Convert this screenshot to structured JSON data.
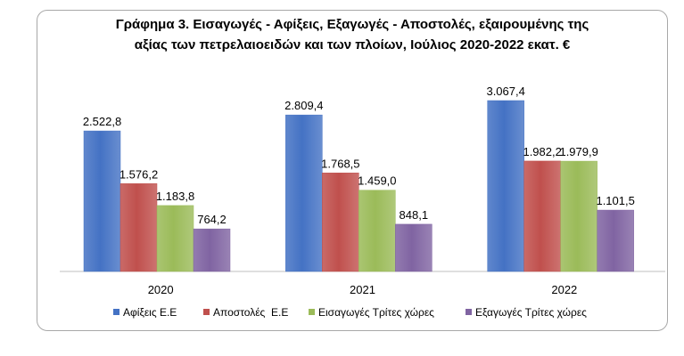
{
  "chart_data": {
    "type": "bar",
    "title_line1": "Γράφημα 3. Εισαγωγές - Αφίξεις, Εξαγωγές - Αποστολές, εξαιρουμένης της",
    "title_line2": "αξίας των πετρελαιοειδών και των πλοίων, Ιούλιος 2020-2022 εκατ. €",
    "categories": [
      "2020",
      "2021",
      "2022"
    ],
    "series": [
      {
        "name": "Αφίξεις Ε.Ε",
        "color": "#4472c4",
        "values": [
          2522.8,
          2809.4,
          3067.4
        ],
        "labels": [
          "2.522,8",
          "2.809,4",
          "3.067,4"
        ]
      },
      {
        "name": "Αποστολές  Ε.Ε",
        "color": "#c0504d",
        "values": [
          1576.2,
          1768.5,
          1982.2
        ],
        "labels": [
          "1.576,2",
          "1.768,5",
          "1.982,2"
        ]
      },
      {
        "name": "Εισαγωγές Τρίτες χώρες",
        "color": "#9bbb59",
        "values": [
          1183.8,
          1459.0,
          1979.9
        ],
        "labels": [
          "1.183,8",
          "1.459,0",
          "1.979,9"
        ]
      },
      {
        "name": "Εξαγωγές Τρίτες χώρες",
        "color": "#8064a2",
        "values": [
          764.2,
          848.1,
          1101.5
        ],
        "labels": [
          "764,2",
          "848,1",
          "1.101,5"
        ]
      }
    ],
    "ylim": [
      0,
      3500
    ],
    "grid": false,
    "legend_position": "bottom"
  }
}
